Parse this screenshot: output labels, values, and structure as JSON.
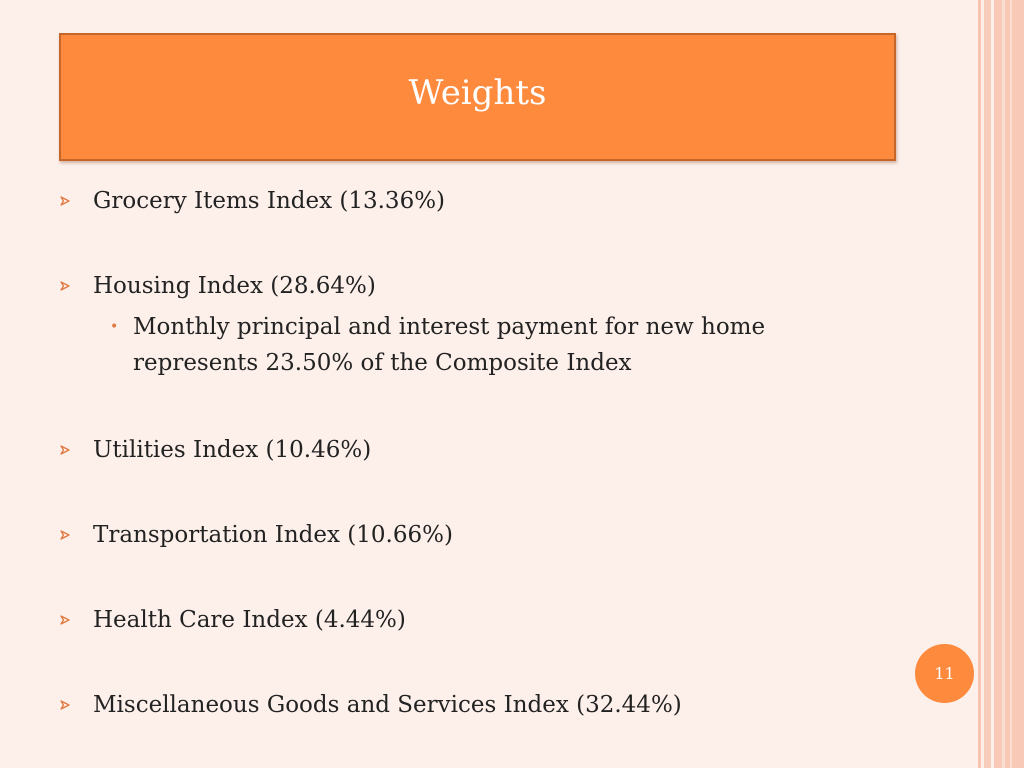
{
  "slide": {
    "title": "Weights",
    "page_number": "11",
    "colors": {
      "accent": "#fd8a3d",
      "background": "#fdf0eb",
      "text": "#222222"
    },
    "items": [
      {
        "label": "Grocery Items Index (13.36%)"
      },
      {
        "label": "Housing Index (28.64%)",
        "sub_items": [
          "Monthly principal and interest payment for new home represents 23.50% of the Composite Index"
        ]
      },
      {
        "label": "Utilities Index (10.46%)"
      },
      {
        "label": "Transportation Index (10.66%)"
      },
      {
        "label": "Health Care Index (4.44%)"
      },
      {
        "label": "Miscellaneous Goods and Services Index (32.44%)"
      }
    ],
    "icons": {
      "bullet": "arrowhead-bullet-icon",
      "sub_bullet": "dot-bullet-icon"
    }
  }
}
